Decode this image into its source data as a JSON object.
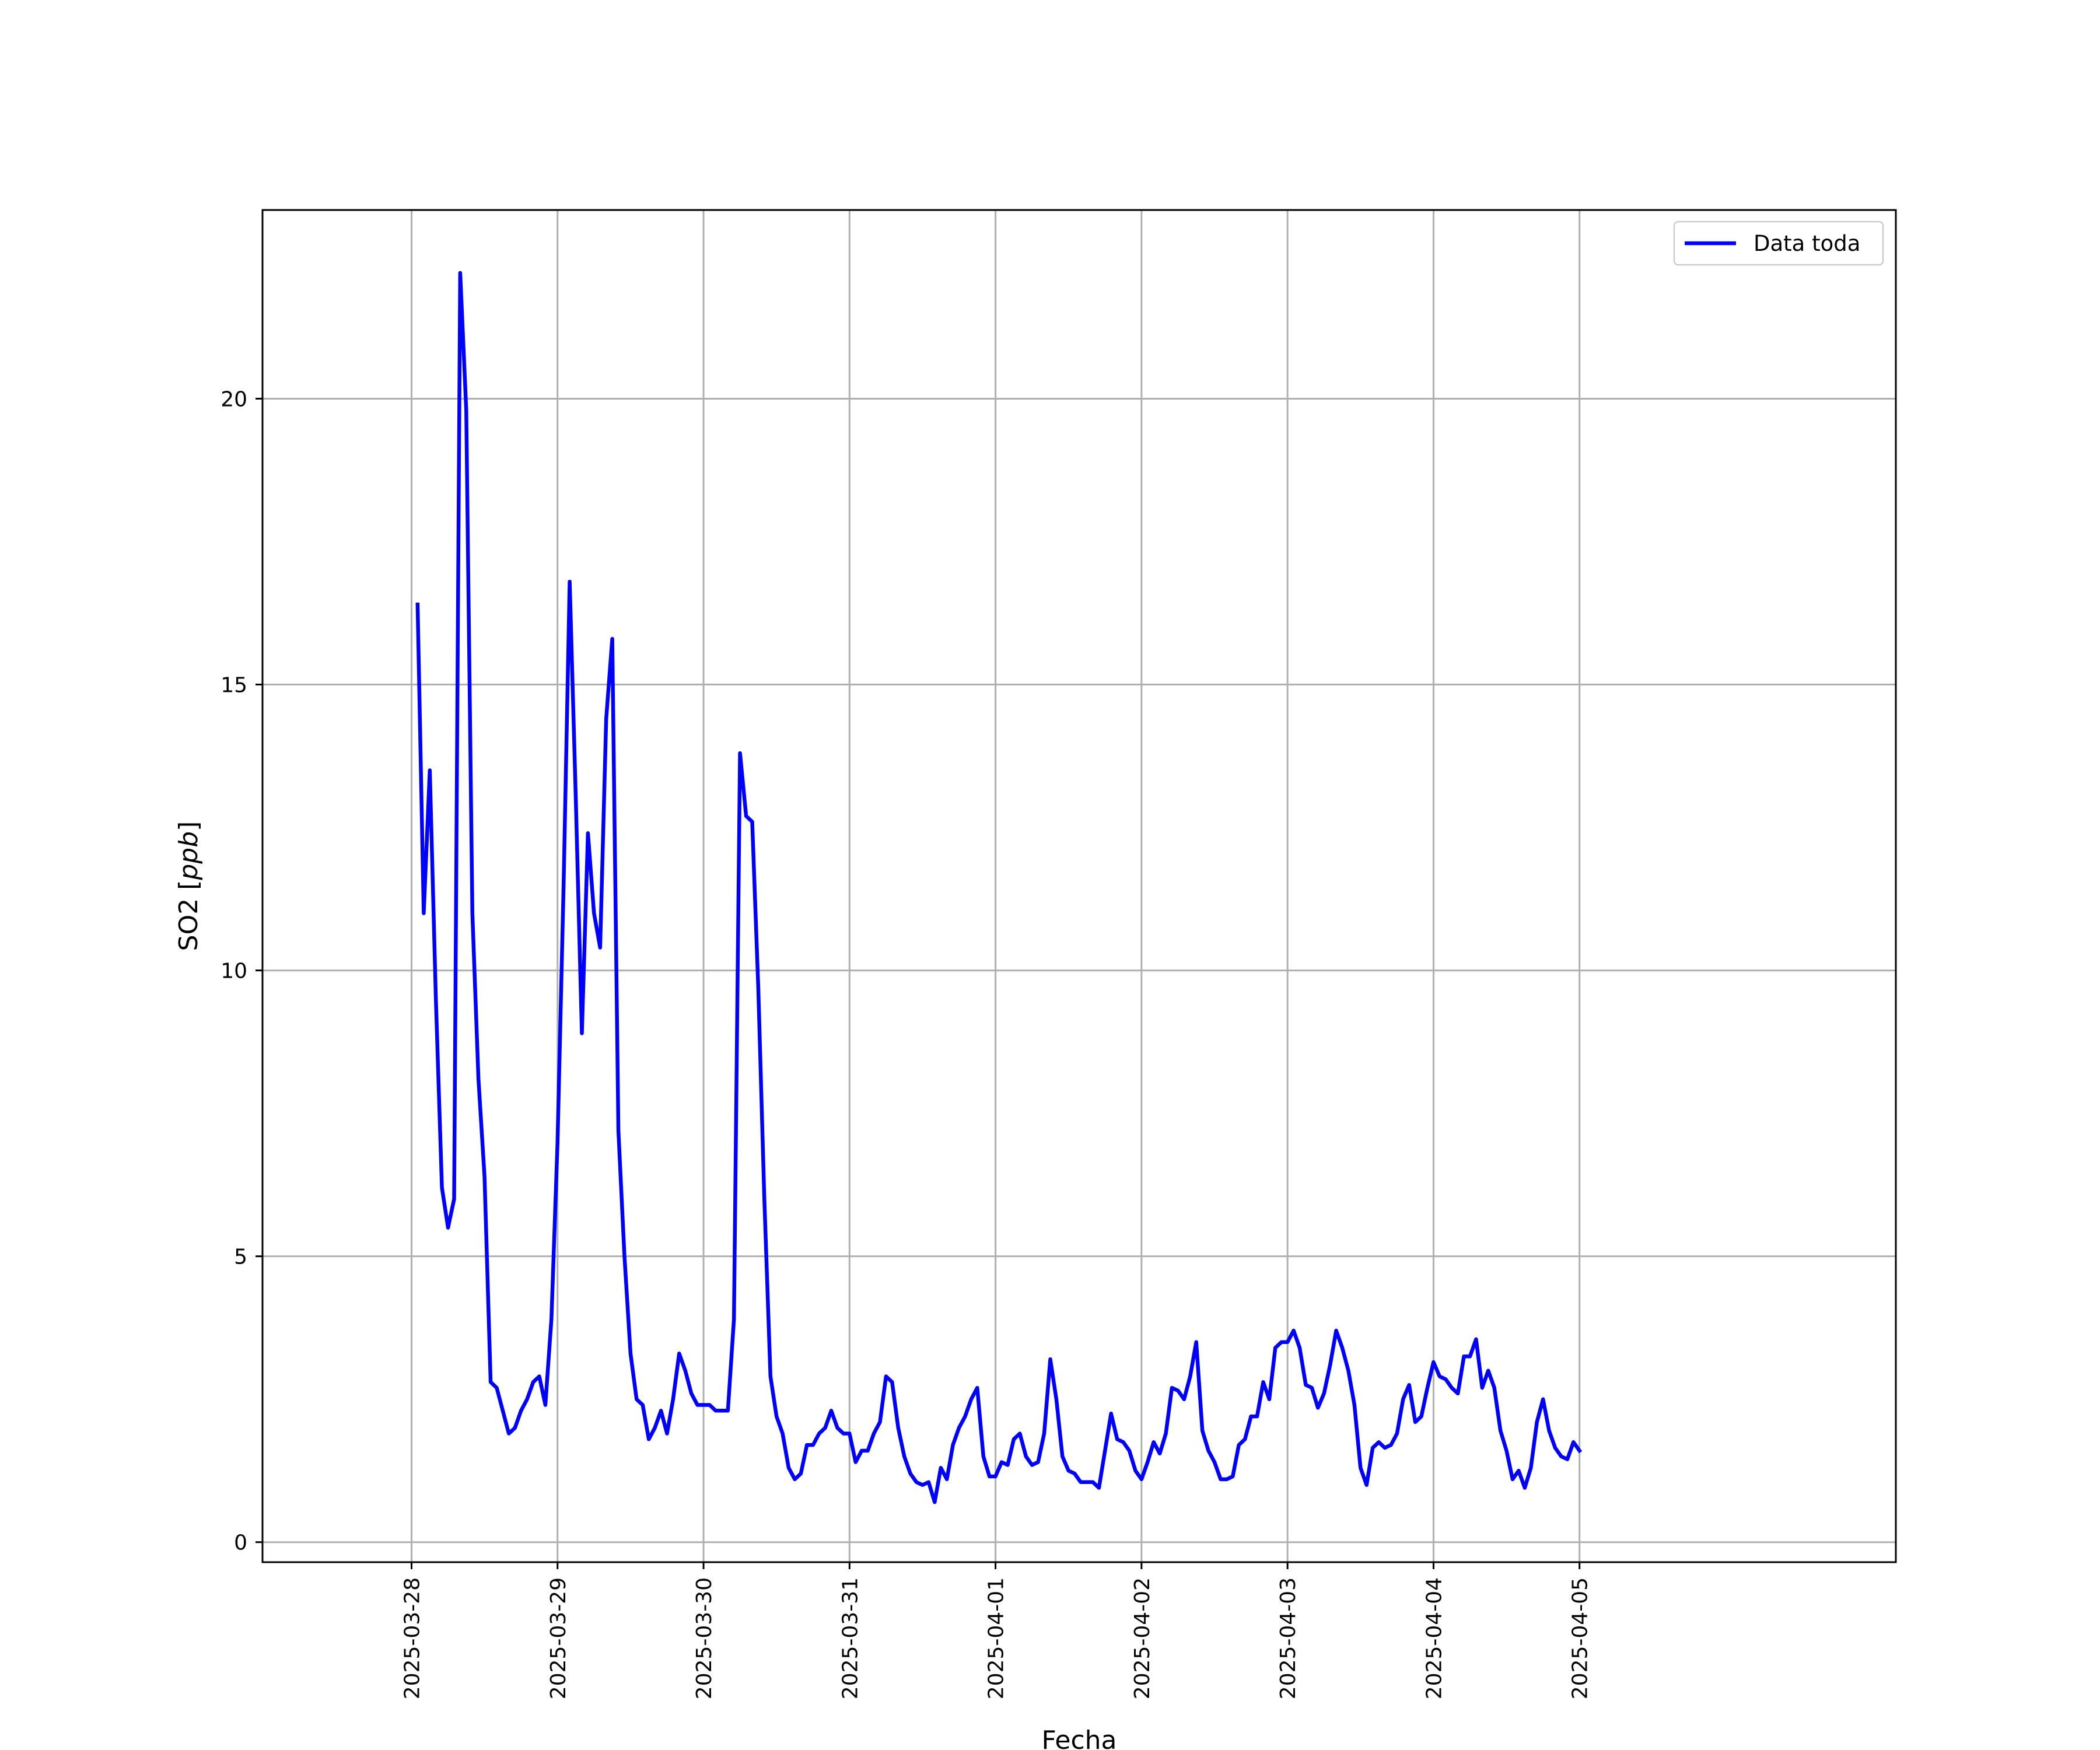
{
  "chart_data": {
    "type": "line",
    "title": "",
    "xlabel": "Fecha",
    "ylabel_main": "SO2 [",
    "ylabel_unit": "ppb",
    "ylabel_close": "]",
    "ylim": [
      -0.35,
      23.3
    ],
    "xlim_hours": [
      -24.5,
      244
    ],
    "yticks": [
      0,
      5,
      10,
      15,
      20
    ],
    "xtick_labels": [
      "2025-03-28",
      "2025-03-29",
      "2025-03-30",
      "2025-03-31",
      "2025-04-01",
      "2025-04-02",
      "2025-04-03",
      "2025-04-04",
      "2025-04-05"
    ],
    "x_start": "2025-03-28 01:00",
    "x_step_hours": 1,
    "grid": true,
    "legend_position": "top-right",
    "colors": {
      "series": "#0000ff",
      "grid": "#b0b0b0",
      "axes": "#000000",
      "legend_border": "#cccccc"
    },
    "series": [
      {
        "name": "Data toda",
        "values": [
          16.4,
          11.0,
          13.5,
          9.5,
          6.2,
          5.5,
          6.0,
          22.2,
          19.8,
          11.0,
          8.1,
          6.4,
          2.8,
          2.7,
          2.3,
          1.9,
          2.0,
          2.3,
          2.5,
          2.8,
          2.9,
          2.4,
          3.9,
          7.0,
          11.5,
          16.8,
          13.0,
          8.9,
          12.4,
          11.0,
          10.4,
          14.4,
          15.8,
          7.2,
          5.0,
          3.3,
          2.5,
          2.4,
          1.8,
          2.0,
          2.3,
          1.9,
          2.5,
          3.3,
          3.0,
          2.6,
          2.4,
          2.4,
          2.4,
          2.3,
          2.3,
          2.3,
          3.9,
          13.8,
          12.7,
          12.6,
          9.7,
          6.0,
          2.9,
          2.2,
          1.9,
          1.3,
          1.1,
          1.2,
          1.7,
          1.7,
          1.9,
          2.0,
          2.3,
          2.0,
          1.9,
          1.9,
          1.4,
          1.6,
          1.6,
          1.9,
          2.1,
          2.9,
          2.8,
          2.0,
          1.5,
          1.2,
          1.05,
          1.0,
          1.05,
          0.7,
          1.3,
          1.1,
          1.7,
          2.0,
          2.2,
          2.5,
          2.7,
          1.5,
          1.15,
          1.15,
          1.4,
          1.35,
          1.8,
          1.9,
          1.5,
          1.35,
          1.4,
          1.9,
          3.2,
          2.5,
          1.5,
          1.25,
          1.2,
          1.05,
          1.05,
          1.05,
          0.95,
          1.6,
          2.25,
          1.8,
          1.75,
          1.6,
          1.25,
          1.1,
          1.4,
          1.75,
          1.55,
          1.9,
          2.7,
          2.65,
          2.5,
          2.9,
          3.5,
          1.95,
          1.6,
          1.4,
          1.1,
          1.1,
          1.15,
          1.7,
          1.8,
          2.2,
          2.2,
          2.8,
          2.5,
          3.4,
          3.5,
          3.5,
          3.7,
          3.4,
          2.75,
          2.7,
          2.35,
          2.6,
          3.1,
          3.7,
          3.4,
          3.0,
          2.4,
          1.3,
          1.0,
          1.65,
          1.75,
          1.65,
          1.7,
          1.9,
          2.5,
          2.75,
          2.1,
          2.2,
          2.7,
          3.15,
          2.9,
          2.85,
          2.7,
          2.6,
          3.25,
          3.25,
          3.55,
          2.7,
          3.0,
          2.7,
          1.95,
          1.6,
          1.1,
          1.25,
          0.95,
          1.3,
          2.1,
          2.5,
          1.95,
          1.65,
          1.5,
          1.45,
          1.75,
          1.6
        ]
      }
    ]
  }
}
